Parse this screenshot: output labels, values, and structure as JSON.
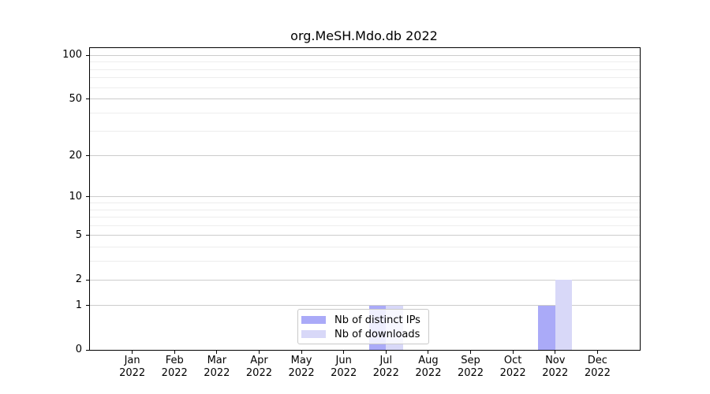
{
  "page": {
    "background": "#ffffff"
  },
  "chart_data": {
    "type": "bar",
    "title": "org.MeSH.Mdo.db 2022",
    "categories": [
      "Jan\n2022",
      "Feb\n2022",
      "Mar\n2022",
      "Apr\n2022",
      "May\n2022",
      "Jun\n2022",
      "Jul\n2022",
      "Aug\n2022",
      "Sep\n2022",
      "Oct\n2022",
      "Nov\n2022",
      "Dec\n2022"
    ],
    "series": [
      {
        "name": "Nb of distinct IPs",
        "color": "#aaaaf8",
        "values": [
          0,
          0,
          0,
          0,
          0,
          0,
          1,
          0,
          0,
          0,
          1,
          0
        ]
      },
      {
        "name": "Nb of downloads",
        "color": "#d8d8f8",
        "values": [
          0,
          0,
          0,
          0,
          0,
          0,
          1,
          0,
          0,
          0,
          2,
          0
        ]
      }
    ],
    "xlabel": "",
    "ylabel": "",
    "yscale": "log1p",
    "ylim": [
      0,
      112
    ],
    "yticks": [
      0,
      1,
      2,
      5,
      10,
      20,
      50,
      100
    ],
    "minor_gridlines": [
      3,
      4,
      6,
      7,
      8,
      9,
      30,
      40,
      60,
      70,
      80,
      90
    ],
    "grid": true,
    "legend_position": "lower-center-inside"
  },
  "colors": {
    "bar_distinct_ips": "#aaaaf8",
    "bar_downloads": "#d8d8f8",
    "grid_major": "#cccccc",
    "grid_minor": "#ededed",
    "axis": "#000000",
    "legend_border": "#c9c9c9"
  }
}
